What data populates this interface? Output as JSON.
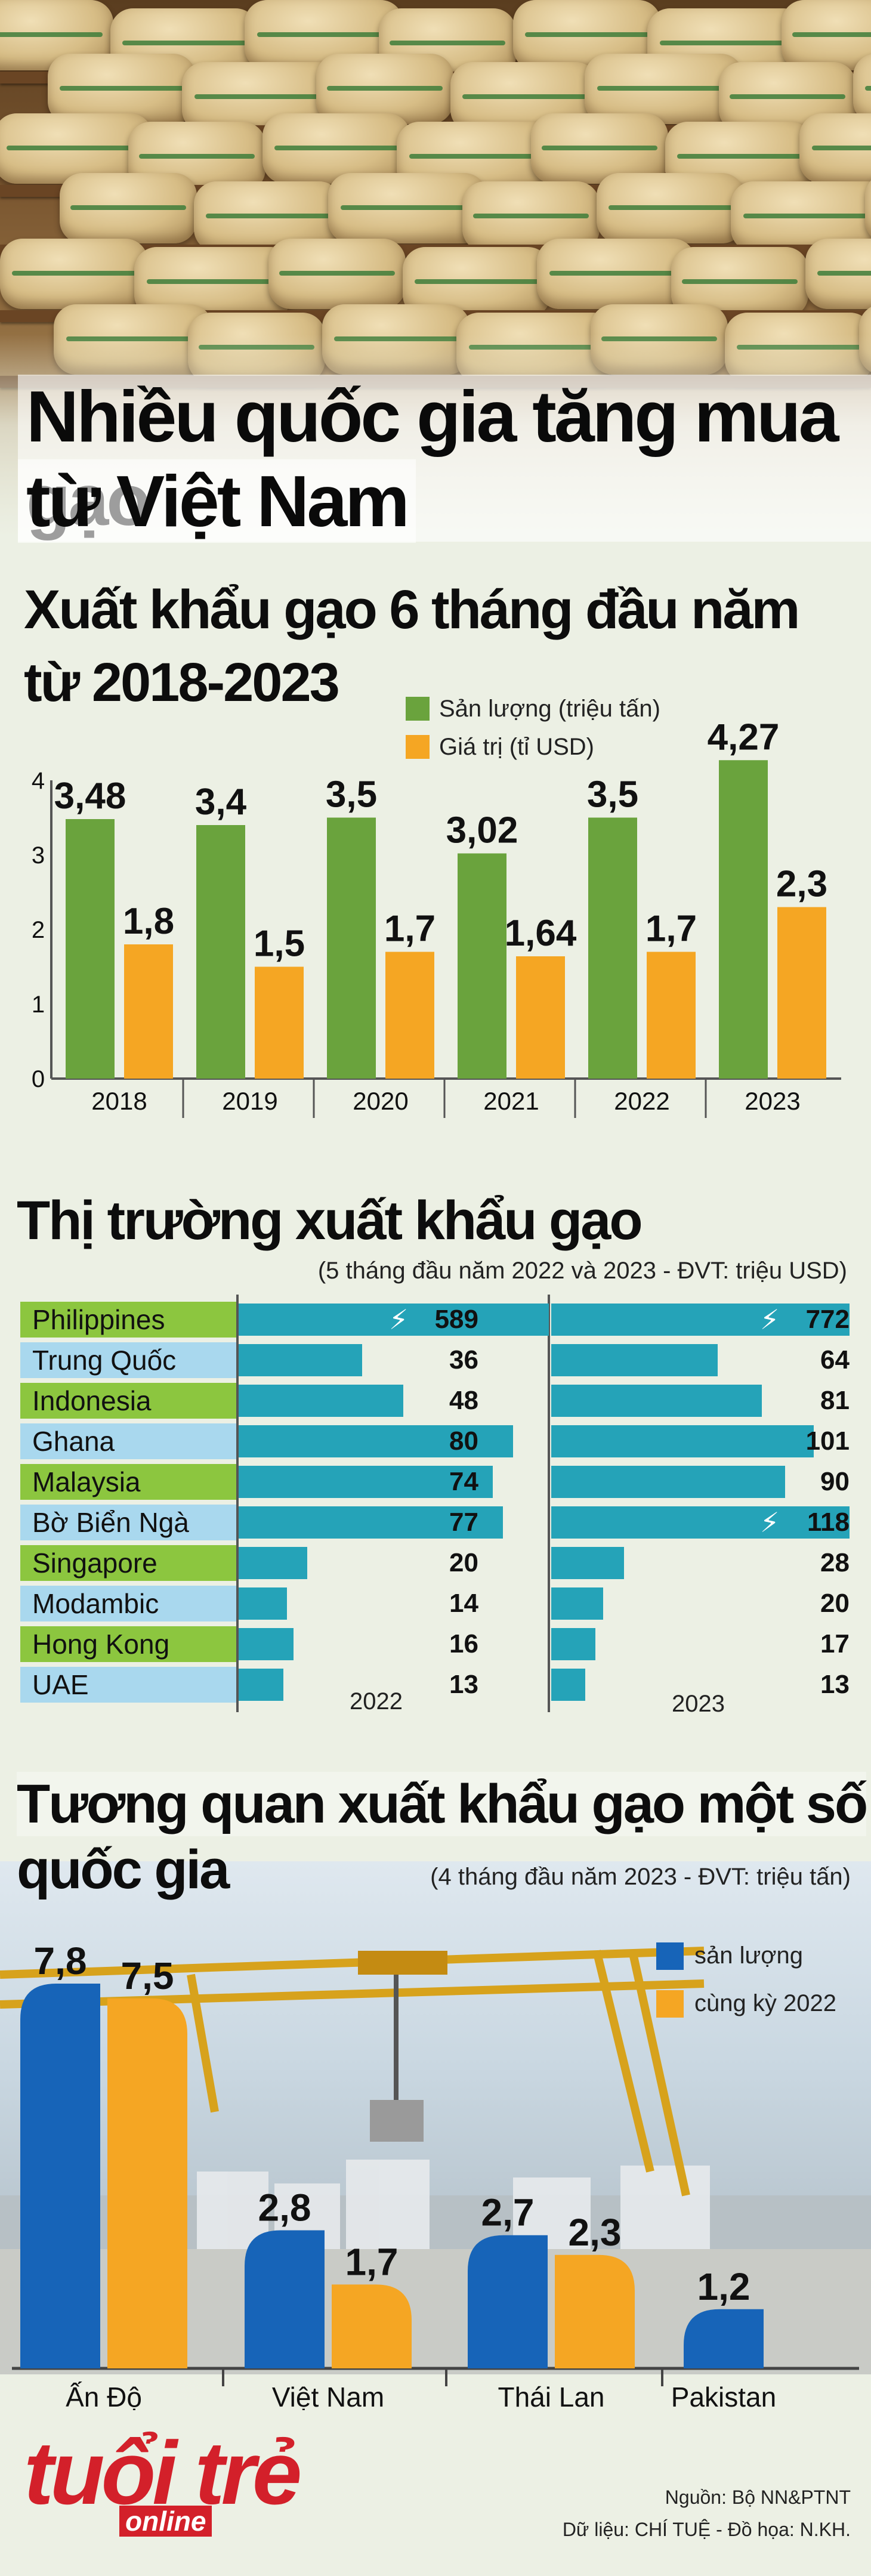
{
  "title": {
    "line1": "Nhiều quốc gia tăng mua gạo",
    "line2": "từ Việt Nam"
  },
  "colors": {
    "green": "#6aa33d",
    "orange": "#f5a623",
    "teal": "#25a3b8",
    "blue": "#1764b8",
    "label_green": "#8cc63f",
    "label_blue": "#a9d8ee"
  },
  "chart_data": [
    {
      "type": "bar",
      "title_line1": "Xuất khẩu gạo 6 tháng đầu năm",
      "title_line2": "từ 2018-2023",
      "categories": [
        "2018",
        "2019",
        "2020",
        "2021",
        "2022",
        "2023"
      ],
      "series": [
        {
          "name": "Sản lượng (triệu tấn)",
          "values": [
            3.48,
            3.4,
            3.5,
            3.02,
            3.5,
            4.27
          ],
          "labels": [
            "3,48",
            "3,4",
            "3,5",
            "3,02",
            "3,5",
            "4,27"
          ]
        },
        {
          "name": "Giá trị (tỉ USD)",
          "values": [
            1.8,
            1.5,
            1.7,
            1.64,
            1.7,
            2.3
          ],
          "labels": [
            "1,8",
            "1,5",
            "1,7",
            "1,64",
            "1,7",
            "2,3"
          ]
        }
      ],
      "yticks": [
        "0",
        "1",
        "2",
        "3",
        "4"
      ],
      "ylim": [
        0,
        4.5
      ],
      "legend": "top-right"
    },
    {
      "type": "bar",
      "title": "Thị trường xuất khẩu gạo",
      "note": "(5 tháng đầu năm 2022 và 2023 - ĐVT: triệu USD)",
      "categories": [
        "Philippines",
        "Trung Quốc",
        "Indonesia",
        "Ghana",
        "Malaysia",
        "Bờ Biển Ngà",
        "Singapore",
        "Modambic",
        "Hong Kong",
        "UAE"
      ],
      "series": [
        {
          "name": "2022",
          "values": [
            589,
            36,
            48,
            80,
            74,
            77,
            20,
            14,
            16,
            13
          ]
        },
        {
          "name": "2023",
          "values": [
            772,
            64,
            81,
            101,
            90,
            118,
            28,
            20,
            17,
            13
          ]
        }
      ],
      "orientation": "horizontal"
    },
    {
      "type": "bar",
      "title_line1": "Tương quan xuất khẩu gạo một số",
      "title_line2": "quốc gia",
      "note": "(4 tháng đầu năm 2023 - ĐVT: triệu tấn)",
      "categories": [
        "Ấn Độ",
        "Việt Nam",
        "Thái Lan",
        "Pakistan"
      ],
      "series": [
        {
          "name": "sản lượng",
          "values": [
            7.8,
            2.8,
            2.7,
            1.2
          ],
          "labels": [
            "7,8",
            "2,8",
            "2,7",
            "1,2"
          ]
        },
        {
          "name": "cùng kỳ 2022",
          "values": [
            7.5,
            1.7,
            2.3,
            null
          ],
          "labels": [
            "7,5",
            "1,7",
            "2,3",
            ""
          ]
        }
      ],
      "ylim": [
        0,
        8.4
      ],
      "legend": "top-right"
    }
  ],
  "footer": {
    "logo": "tuổi trẻ",
    "logo_sub": "online",
    "source": "Nguồn: Bộ NN&PTNT",
    "credit": "Dữ liệu: CHÍ TUỆ - Đồ họa: N.KH."
  }
}
